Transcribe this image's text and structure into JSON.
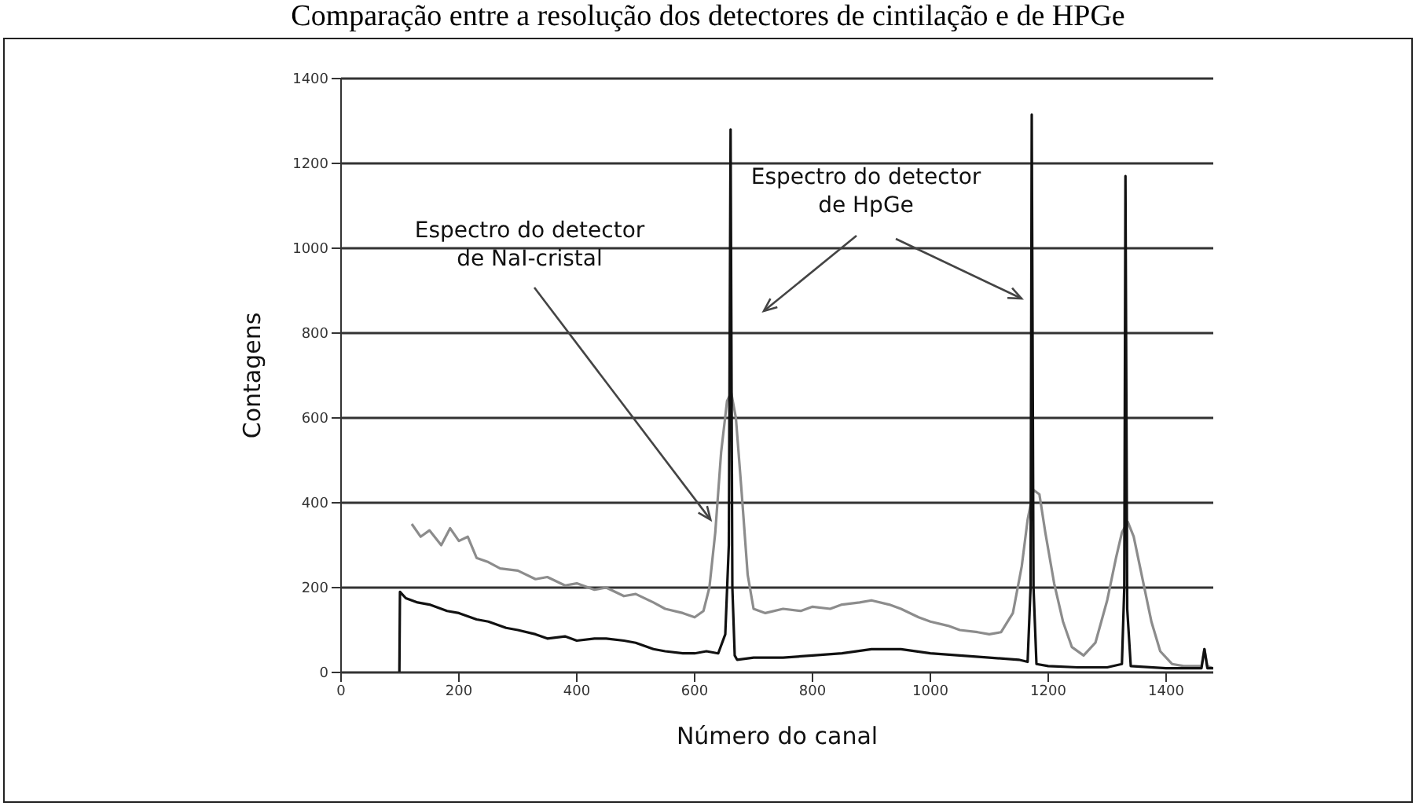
{
  "chart_data": {
    "type": "line",
    "title": "Comparação entre a resolução dos detectores de cintilação e de HPGe",
    "xlabel": "Número do canal",
    "ylabel": "Contagens",
    "annotations": [
      {
        "text": "Espectro do detector\nde NaI-cristal",
        "x": 627,
        "y": 360
      },
      "Espectro do detector\nde HpGe"
    ],
    "xlim": [
      0,
      1480
    ],
    "xticks": [
      0,
      200,
      400,
      600,
      800,
      1000,
      1200,
      1400
    ],
    "ylim": [
      0,
      1400
    ],
    "yticks": [
      0,
      200,
      400,
      600,
      800,
      1000,
      1200,
      1400
    ],
    "grid": "y",
    "marker": "none",
    "line_style": "solid",
    "series": [
      {
        "color": "#8c8c8c",
        "x": [
          120,
          135,
          150,
          170,
          185,
          200,
          215,
          230,
          250,
          270,
          300,
          330,
          350,
          380,
          400,
          430,
          450,
          480,
          500,
          530,
          550,
          580,
          600,
          615,
          625,
          635,
          645,
          655,
          662,
          670,
          680,
          690,
          700,
          720,
          750,
          780,
          800,
          830,
          850,
          880,
          900,
          930,
          950,
          980,
          1000,
          1030,
          1050,
          1080,
          1100,
          1120,
          1140,
          1155,
          1165,
          1175,
          1185,
          1195,
          1210,
          1225,
          1240,
          1260,
          1280,
          1300,
          1315,
          1325,
          1335,
          1345,
          1360,
          1375,
          1390,
          1410,
          1430,
          1460,
          1465,
          1470,
          1480
        ],
        "values": [
          350,
          320,
          335,
          300,
          340,
          310,
          320,
          270,
          260,
          245,
          240,
          220,
          225,
          205,
          210,
          195,
          200,
          180,
          185,
          165,
          150,
          140,
          130,
          145,
          200,
          330,
          520,
          640,
          660,
          600,
          420,
          230,
          150,
          140,
          150,
          145,
          155,
          150,
          160,
          165,
          170,
          160,
          150,
          130,
          120,
          110,
          100,
          95,
          90,
          95,
          140,
          250,
          360,
          430,
          420,
          330,
          210,
          120,
          60,
          40,
          70,
          170,
          270,
          330,
          355,
          320,
          220,
          120,
          50,
          20,
          15,
          15,
          55,
          15,
          10
        ]
      },
      {
        "color": "#111111",
        "x": [
          99,
          100,
          110,
          130,
          150,
          180,
          200,
          230,
          250,
          280,
          300,
          330,
          350,
          380,
          400,
          430,
          450,
          480,
          500,
          530,
          550,
          580,
          600,
          620,
          640,
          652,
          658,
          661,
          664,
          668,
          672,
          700,
          750,
          800,
          850,
          900,
          950,
          1000,
          1050,
          1100,
          1150,
          1165,
          1170,
          1172,
          1175,
          1180,
          1200,
          1250,
          1300,
          1325,
          1329,
          1331,
          1334,
          1340,
          1400,
          1460,
          1465,
          1470,
          1480
        ],
        "values": [
          0,
          190,
          175,
          165,
          160,
          145,
          140,
          125,
          120,
          105,
          100,
          90,
          80,
          85,
          75,
          80,
          80,
          75,
          70,
          55,
          50,
          45,
          45,
          50,
          45,
          90,
          300,
          1280,
          200,
          40,
          30,
          35,
          35,
          40,
          45,
          55,
          55,
          45,
          40,
          35,
          30,
          25,
          200,
          1315,
          200,
          20,
          15,
          12,
          12,
          20,
          200,
          1170,
          150,
          15,
          10,
          10,
          55,
          10,
          10
        ]
      }
    ]
  }
}
